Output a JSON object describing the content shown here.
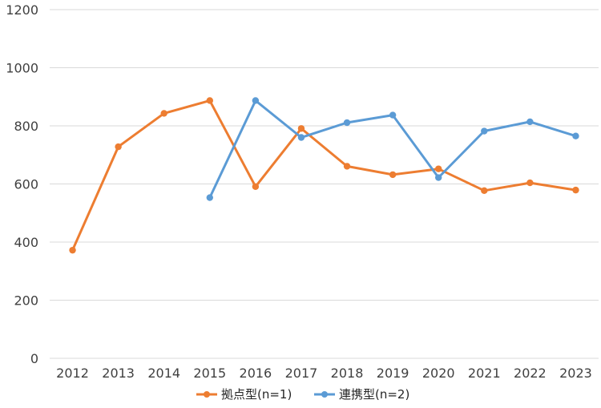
{
  "chart_data": {
    "type": "line",
    "categories": [
      "2012",
      "2013",
      "2014",
      "2015",
      "2016",
      "2017",
      "2018",
      "2019",
      "2020",
      "2021",
      "2022",
      "2023"
    ],
    "ylim": [
      0,
      1200
    ],
    "yticks": [
      0,
      200,
      400,
      600,
      800,
      1000,
      1200
    ],
    "grid": true,
    "legend_position": "bottom",
    "series": [
      {
        "name": "拠点型(n=1)",
        "color": "#ED7D31",
        "values": [
          372,
          728,
          843,
          887,
          591,
          791,
          661,
          632,
          652,
          577,
          604,
          579
        ]
      },
      {
        "name": "連携型(n=2)",
        "color": "#5B9BD5",
        "values": [
          null,
          null,
          null,
          553,
          887,
          760,
          811,
          837,
          622,
          782,
          814,
          765
        ]
      }
    ]
  }
}
